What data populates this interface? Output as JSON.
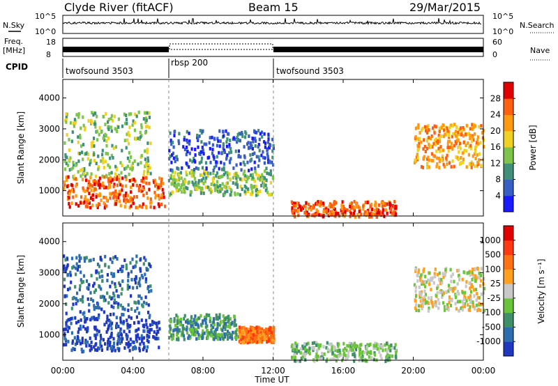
{
  "header": {
    "station": "Clyde River (fitACF)",
    "beam": "Beam 15",
    "date": "29/Mar/2015"
  },
  "status_panels": {
    "nsky_label": "N.Sky",
    "nsky_ticks": [
      "10^5",
      "10^0"
    ],
    "nsearch_label": "N.Search",
    "nsearch_ticks": [
      "10^5",
      "10^0"
    ],
    "freq_label_1": "Freq.",
    "freq_label_2": "[MHz]",
    "freq_ticks": [
      "18",
      "8"
    ],
    "nave_label": "Nave",
    "nave_ticks": [
      "60",
      "0"
    ],
    "cpid_label": "CPID",
    "cpid_segments": [
      {
        "name": "twofsound 3503",
        "start": 0.0,
        "end": 6.0
      },
      {
        "name": "rbsp 200",
        "start": 6.0,
        "end": 12.0
      },
      {
        "name": "twofsound 3503",
        "start": 12.0,
        "end": 24.0
      }
    ]
  },
  "chart_data": [
    {
      "type": "heatmap",
      "panel": "power",
      "ylabel": "Slant Range [km]",
      "ylim": [
        180,
        4600
      ],
      "yticks": [
        "1000",
        "2000",
        "3000",
        "4000"
      ],
      "xlim": [
        0,
        24
      ],
      "colorbar_label": "Power [dB]",
      "colorbar_ticks": [
        "4",
        "8",
        "12",
        "16",
        "20",
        "24",
        "28"
      ],
      "colorbar_colors": [
        "#1a1aff",
        "#3a5fc4",
        "#3f8f7a",
        "#7fc44a",
        "#f0d020",
        "#ff9a10",
        "#ff6010",
        "#e00000"
      ],
      "echo_regions": [
        {
          "t0": 0.0,
          "t1": 5.8,
          "r0": 500,
          "r1": 1500,
          "level": 6
        },
        {
          "t0": 0.0,
          "t1": 5.0,
          "r0": 1500,
          "r1": 3600,
          "level": 3
        },
        {
          "t0": 6.0,
          "t1": 12.0,
          "r0": 900,
          "r1": 1700,
          "level": 3
        },
        {
          "t0": 6.0,
          "t1": 12.0,
          "r0": 1700,
          "r1": 3000,
          "level": 1
        },
        {
          "t0": 13.0,
          "t1": 19.0,
          "r0": 200,
          "r1": 700,
          "level": 6
        },
        {
          "t0": 20.0,
          "t1": 24.0,
          "r0": 1800,
          "r1": 3200,
          "level": 5
        }
      ]
    },
    {
      "type": "heatmap",
      "panel": "velocity",
      "ylabel": "Slant Range [km]",
      "ylim": [
        180,
        4600
      ],
      "yticks": [
        "1000",
        "2000",
        "3000",
        "4000"
      ],
      "xlim": [
        0,
        24
      ],
      "xlabel": "Time UT",
      "xticks": [
        "00:00",
        "04:00",
        "08:00",
        "12:00",
        "16:00",
        "20:00",
        "00:00"
      ],
      "colorbar_label": "Velocity [m s⁻¹]",
      "colorbar_ticks": [
        "1000",
        "500",
        "100",
        "25",
        "-25",
        "-100",
        "-500",
        "-1000"
      ],
      "colorbar_colors": [
        "#2038c0",
        "#2e6eae",
        "#3f8f6a",
        "#6ac43a",
        "#c8c8c8",
        "#ffa020",
        "#ff7010",
        "#ff3a10",
        "#e00000"
      ],
      "echo_regions": [
        {
          "t0": 0.0,
          "t1": 5.5,
          "r0": 500,
          "r1": 1600,
          "level": 0
        },
        {
          "t0": 0.0,
          "t1": 5.0,
          "r0": 1600,
          "r1": 3600,
          "level": 1
        },
        {
          "t0": 6.0,
          "t1": 10.0,
          "r0": 900,
          "r1": 1700,
          "level": 2
        },
        {
          "t0": 10.0,
          "t1": 12.0,
          "r0": 800,
          "r1": 1300,
          "level": 6
        },
        {
          "t0": 13.0,
          "t1": 19.0,
          "r0": 200,
          "r1": 800,
          "level": 3
        },
        {
          "t0": 20.0,
          "t1": 24.0,
          "r0": 1800,
          "r1": 3200,
          "level": 4
        }
      ]
    }
  ]
}
